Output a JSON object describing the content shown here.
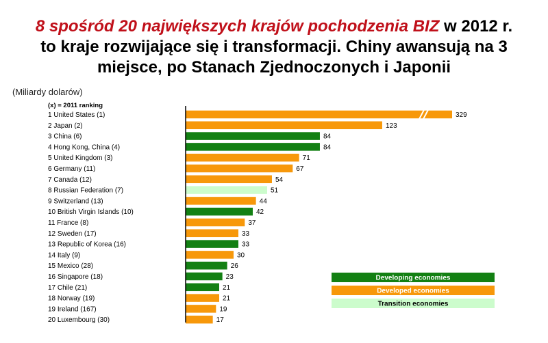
{
  "title": {
    "line1_highlight": "8 spośród 20 największych krajów pochodzenia BIZ",
    "line1_rest": " w 2012 r.",
    "line2": "to kraje rozwijające się i transformacji. Chiny awansują na 3",
    "line3": "miejsce, po Stanach Zjednoczonych i Japonii"
  },
  "units_label": "(Miliardy dolarów)",
  "chart_data": {
    "type": "bar",
    "orientation": "horizontal",
    "header": "(x) = 2011 ranking",
    "categories": [
      "1 United States (1)",
      "2 Japan (2)",
      "3 China (6)",
      "4 Hong Kong, China (4)",
      "5 United Kingdom (3)",
      "6 Germany (11)",
      "7 Canada (12)",
      "8 Russian Federation (7)",
      "9 Switzerland (13)",
      "10 British Virgin Islands (10)",
      "11 France (8)",
      "12 Sweden (17)",
      "13 Republic of Korea (16)",
      "14 Italy (9)",
      "15 Mexico (28)",
      "16 Singapore (18)",
      "17 Chile (21)",
      "18 Norway (19)",
      "19 Ireland (167)",
      "20 Luxembourg (30)"
    ],
    "values": [
      329,
      123,
      84,
      84,
      71,
      67,
      54,
      51,
      44,
      42,
      37,
      33,
      33,
      30,
      26,
      23,
      21,
      21,
      19,
      17
    ],
    "groups": [
      "developed",
      "developed",
      "developing",
      "developing",
      "developed",
      "developed",
      "developed",
      "transition",
      "developed",
      "developing",
      "developed",
      "developed",
      "developing",
      "developed",
      "developing",
      "developing",
      "developing",
      "developed",
      "developed",
      "developed"
    ],
    "axis_break_values": [
      329
    ],
    "legend": [
      {
        "key": "developing",
        "label": "Developing economies"
      },
      {
        "key": "developed",
        "label": "Developed economies"
      },
      {
        "key": "transition",
        "label": "Transition economies"
      }
    ],
    "legend_position": "bottom-right",
    "colors": {
      "developing": "#138013",
      "developed": "#f7980a",
      "transition": "#ccfccc",
      "legend_developing_text": "#ffffff",
      "legend_developed_text": "#ffffff",
      "legend_transition_text": "#000000"
    }
  }
}
